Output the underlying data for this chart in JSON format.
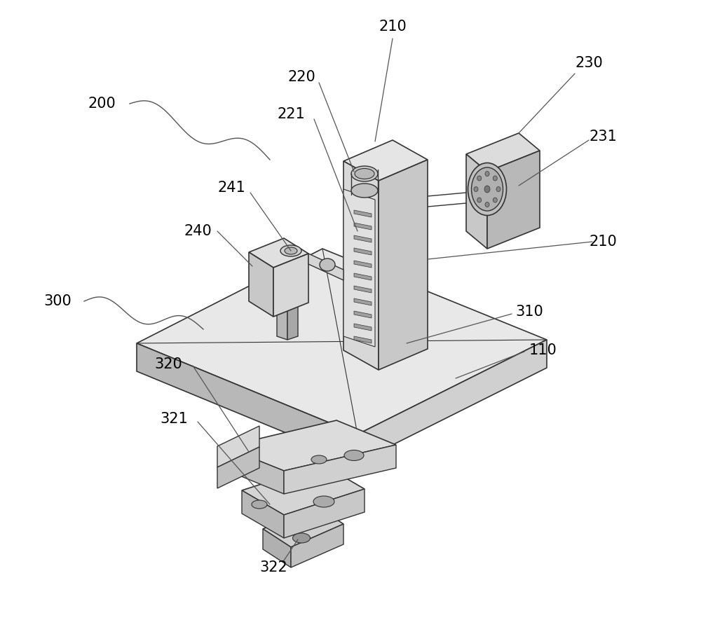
{
  "bg_color": "#ffffff",
  "line_color": "#333333",
  "label_color": "#000000",
  "fig_width": 10.0,
  "fig_height": 9.05,
  "lw": 1.2
}
